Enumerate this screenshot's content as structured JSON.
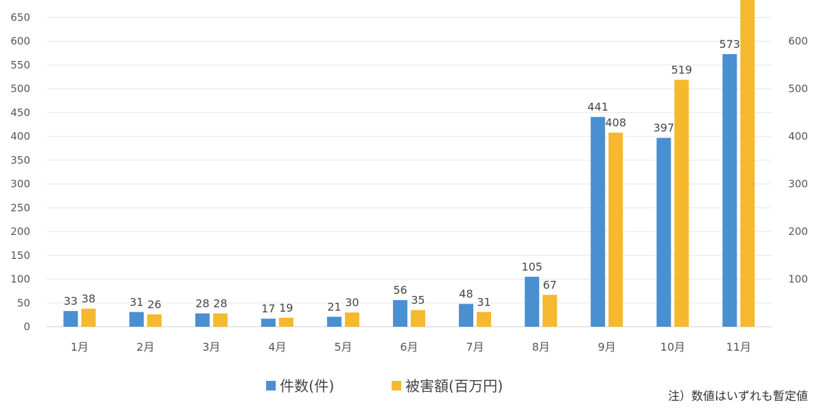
{
  "chart_data": {
    "type": "bar",
    "categories": [
      "1月",
      "2月",
      "3月",
      "4月",
      "5月",
      "6月",
      "7月",
      "8月",
      "9月",
      "10月",
      "11月"
    ],
    "series": [
      {
        "name": "件数(件)",
        "axis": "left",
        "color": "#4a8fd0",
        "values": [
          33,
          31,
          28,
          17,
          21,
          56,
          48,
          105,
          441,
          397,
          573
        ]
      },
      {
        "name": "被害額(百万円)",
        "axis": "right",
        "color": "#f5b82e",
        "values": [
          38,
          26,
          28,
          19,
          30,
          35,
          31,
          67,
          408,
          519,
          null
        ]
      }
    ],
    "y_left": {
      "ticks": [
        0,
        50,
        100,
        150,
        200,
        250,
        300,
        350,
        400,
        450,
        500,
        550,
        600,
        650
      ],
      "ylim": [
        0,
        680
      ]
    },
    "y_right": {
      "ticks": [
        100,
        200,
        300,
        400,
        500,
        600
      ],
      "ylim": [
        0,
        680
      ]
    },
    "grid": true,
    "legend_placement": "bottom",
    "note": "注）数値はいずれも暫定値"
  }
}
